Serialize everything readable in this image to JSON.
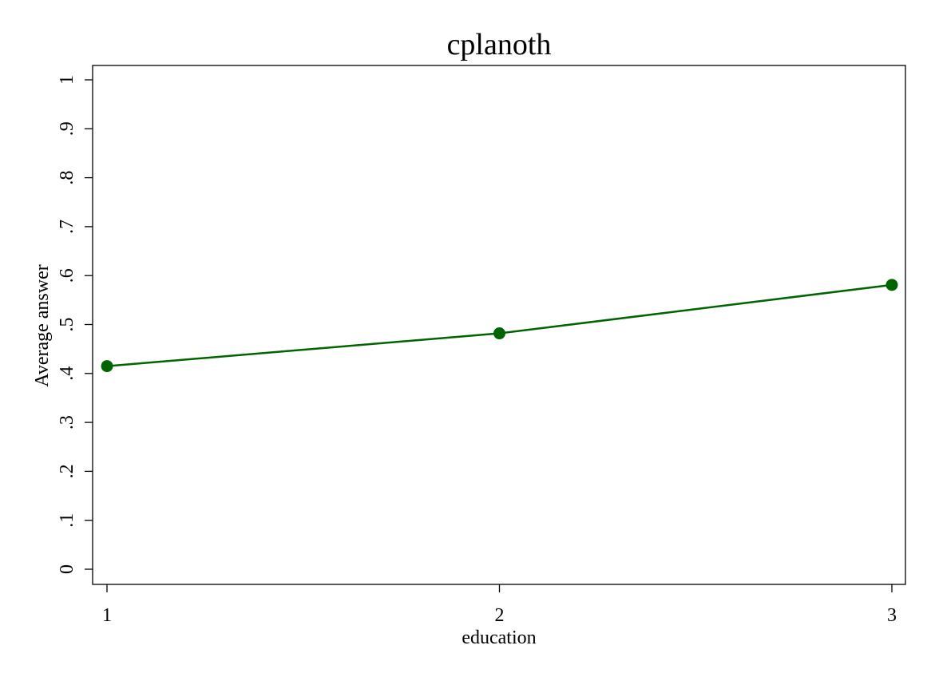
{
  "chart_data": {
    "type": "line",
    "title": "cplanoth",
    "xlabel": "education",
    "ylabel": "Average answer",
    "x": [
      1,
      2,
      3
    ],
    "xticks": [
      "1",
      "2",
      "3"
    ],
    "yticks": [
      {
        "value": 0,
        "label": "0"
      },
      {
        "value": 0.1,
        "label": ".1"
      },
      {
        "value": 0.2,
        "label": ".2"
      },
      {
        "value": 0.3,
        "label": ".3"
      },
      {
        "value": 0.4,
        "label": ".4"
      },
      {
        "value": 0.5,
        "label": ".5"
      },
      {
        "value": 0.6,
        "label": ".6"
      },
      {
        "value": 0.7,
        "label": ".7"
      },
      {
        "value": 0.8,
        "label": ".8"
      },
      {
        "value": 0.9,
        "label": ".9"
      },
      {
        "value": 1,
        "label": "1"
      }
    ],
    "ylim": [
      0,
      1
    ],
    "xlim": [
      1,
      3
    ],
    "grid": false,
    "series": [
      {
        "values": [
          0.415,
          0.482,
          0.581
        ],
        "color": "#006400"
      }
    ]
  }
}
